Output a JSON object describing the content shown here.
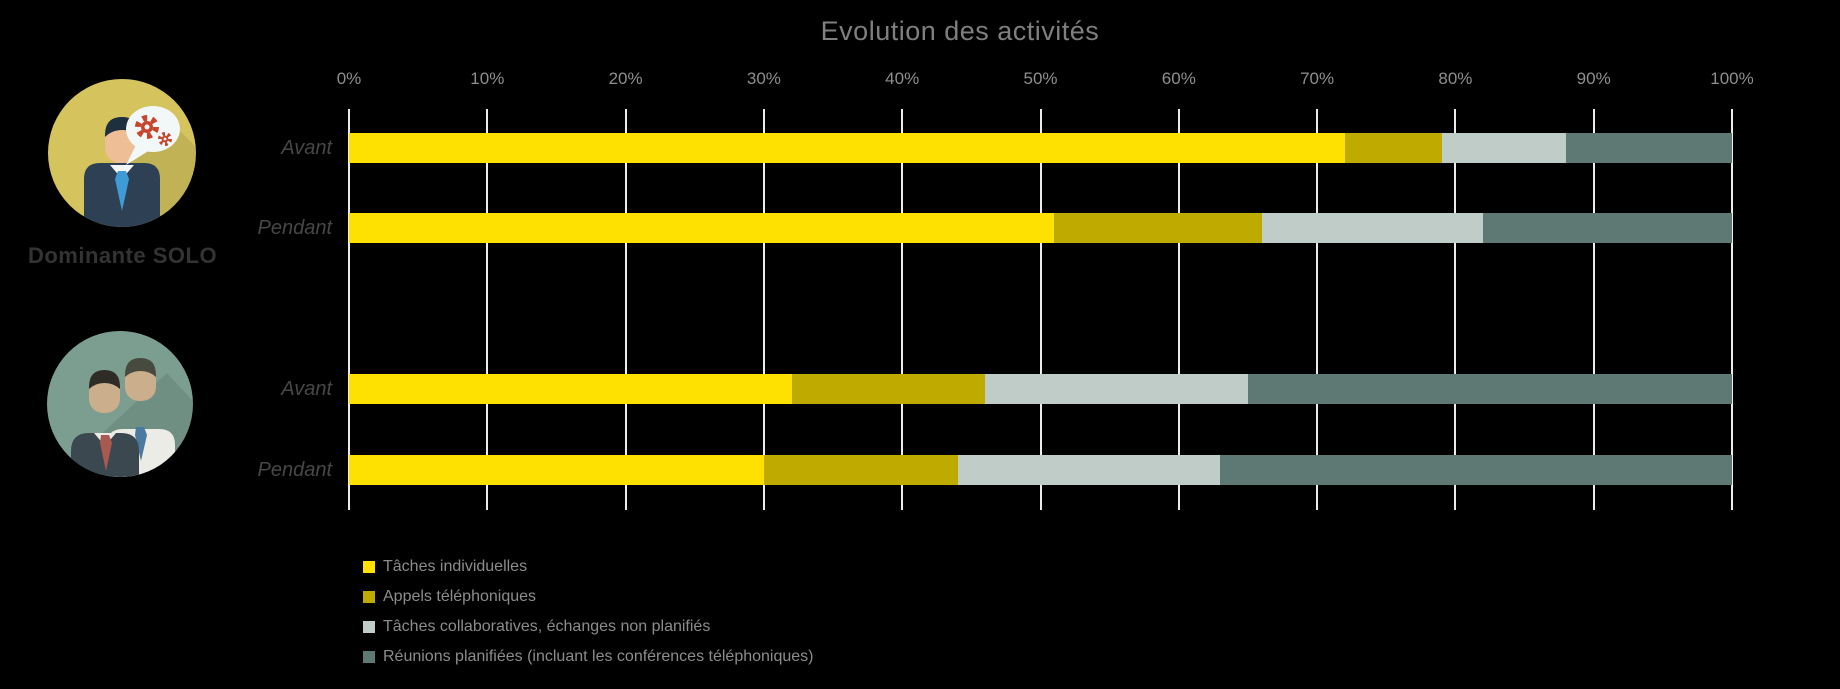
{
  "title": "Evolution des activités",
  "left_panel": {
    "group1": {
      "icon": "solo-person-speech-gears",
      "label": "Dominante SOLO"
    },
    "group2": {
      "icon": "two-people",
      "label": ""
    }
  },
  "chart_data": {
    "type": "bar",
    "variant": "stacked-horizontal",
    "title": "Evolution des activités",
    "x_axis": {
      "min": 0,
      "max": 100,
      "unit": "%",
      "tick_labels": [
        "0%",
        "10%",
        "20%",
        "30%",
        "40%",
        "50%",
        "60%",
        "70%",
        "80%",
        "90%",
        "100%"
      ],
      "gridlines": true
    },
    "series": [
      {
        "name": "Tâches individuelles",
        "color": "#ffe100"
      },
      {
        "name": "Appels téléphoniques",
        "color": "#bfaa00"
      },
      {
        "name": "Tâches collaboratives, échanges non planifiés",
        "color": "#bfccc8"
      },
      {
        "name": "Réunions planifiées (incluant les conférences téléphoniques)",
        "color": "#5e7873"
      }
    ],
    "row_groups": [
      {
        "group_label": "Dominante SOLO",
        "rows": [
          {
            "label": "Avant",
            "values": [
              72,
              7,
              9,
              12
            ]
          },
          {
            "label": "Pendant",
            "values": [
              51,
              15,
              16,
              18
            ]
          }
        ]
      },
      {
        "group_label": "",
        "rows": [
          {
            "label": "Avant",
            "values": [
              32,
              14,
              19,
              35
            ]
          },
          {
            "label": "Pendant",
            "values": [
              30,
              14,
              19,
              37
            ]
          }
        ]
      }
    ],
    "legend_position": "bottom-left"
  },
  "colors": {
    "background": "#000000",
    "title": "#7f7f7f",
    "tick_label": "#8e8e8e",
    "row_label": "#474747",
    "legend_label": "#8c8c8c",
    "gridline": "#ececec",
    "group_label": "#333333",
    "icon1_circle": "#d5c45e",
    "icon2_circle": "#7c9e91"
  }
}
